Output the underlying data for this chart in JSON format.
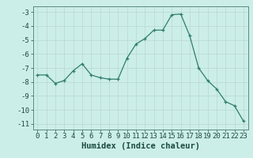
{
  "x": [
    0,
    1,
    2,
    3,
    4,
    5,
    6,
    7,
    8,
    9,
    10,
    11,
    12,
    13,
    14,
    15,
    16,
    17,
    18,
    19,
    20,
    21,
    22,
    23
  ],
  "y": [
    -7.5,
    -7.5,
    -8.1,
    -7.9,
    -7.2,
    -6.7,
    -7.5,
    -7.7,
    -7.8,
    -7.8,
    -6.3,
    -5.3,
    -4.9,
    -4.3,
    -4.3,
    -3.2,
    -3.15,
    -4.7,
    -7.0,
    -7.9,
    -8.5,
    -9.4,
    -9.7,
    -10.8
  ],
  "line_color": "#2e7d6e",
  "marker": "+",
  "marker_size": 3,
  "bg_color": "#cceee8",
  "grid_color": "#b8d8d2",
  "xlabel": "Humidex (Indice chaleur)",
  "xlim": [
    -0.5,
    23.5
  ],
  "ylim": [
    -11.4,
    -2.6
  ],
  "yticks": [
    -3,
    -4,
    -5,
    -6,
    -7,
    -8,
    -9,
    -10,
    -11
  ],
  "xtick_labels": [
    "0",
    "1",
    "2",
    "3",
    "4",
    "5",
    "6",
    "7",
    "8",
    "9",
    "10",
    "11",
    "12",
    "13",
    "14",
    "15",
    "16",
    "17",
    "18",
    "19",
    "20",
    "21",
    "22",
    "23"
  ],
  "font_color": "#1a4a42",
  "tick_fontsize": 6.5,
  "label_fontsize": 7.5
}
